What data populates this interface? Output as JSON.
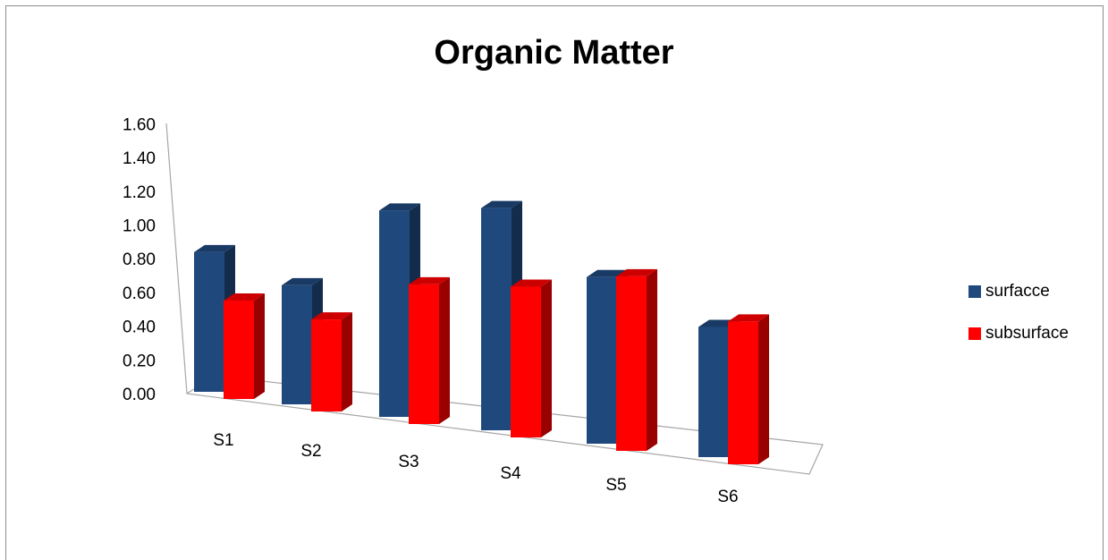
{
  "chart_data": {
    "type": "bar",
    "title": "Organic Matter",
    "xlabel": "",
    "ylabel": "",
    "categories": [
      "S1",
      "S2",
      "S3",
      "S4",
      "S5",
      "S6"
    ],
    "series": [
      {
        "name": "surfacce",
        "values": [
          0.88,
          0.75,
          1.3,
          1.4,
          1.05,
          0.82
        ],
        "color": "#1F497D"
      },
      {
        "name": "subsurface",
        "values": [
          0.62,
          0.58,
          0.88,
          0.95,
          1.1,
          0.9
        ],
        "color": "#FF0000"
      }
    ],
    "ylim": [
      0,
      1.6
    ],
    "yticks": [
      "0.00",
      "0.20",
      "0.40",
      "0.60",
      "0.80",
      "1.00",
      "1.20",
      "1.40",
      "1.60"
    ],
    "grid": false,
    "legend_position": "right",
    "style": "3d-clustered-column"
  }
}
